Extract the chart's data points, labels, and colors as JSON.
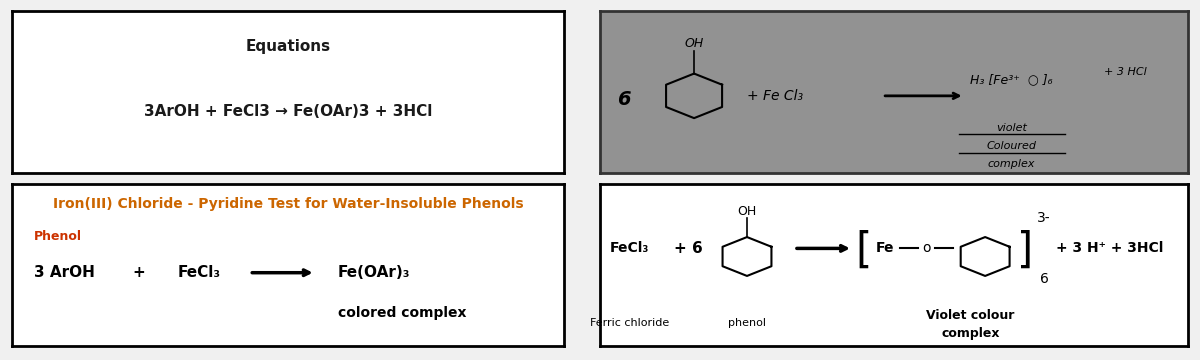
{
  "bg_color": "#f0f0f0",
  "box1": {
    "title": "Equations",
    "equation": "3ArOH + FeCl3 → Fe(OAr)3 + 3HCl",
    "box_color": "#000000",
    "title_fontsize": 11,
    "eq_fontsize": 11
  },
  "box2": {
    "title": "Iron(III) Chloride - Pyridine Test for Water-Insoluble Phenols",
    "subtitle": "Phenol",
    "line2": "colored complex",
    "title_color": "#cc6600",
    "subtitle_color": "#cc3300",
    "box_color": "#000000",
    "title_fontsize": 10,
    "sub_fontsize": 9,
    "eq_fontsize": 11
  },
  "box3": {
    "bg_color": "#929292"
  },
  "box4": {
    "label_ferric": "Ferric chloride",
    "label_phenol": "phenol",
    "bracket_sub": "6",
    "bracket_sup": "3-",
    "violet": "Violet colour\ncomplex",
    "box_color": "#000000"
  }
}
